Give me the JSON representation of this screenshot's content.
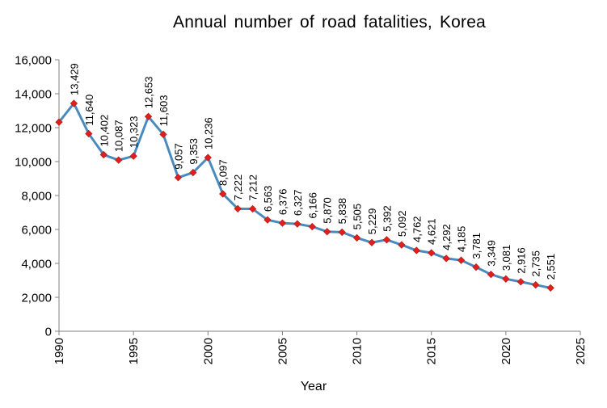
{
  "chart_data": {
    "type": "line",
    "title": "Annual  number  of road fatalities, Korea",
    "xlabel": "Year",
    "ylabel": "",
    "xlim": [
      1990,
      2025
    ],
    "ylim": [
      0,
      16000
    ],
    "x_ticks": [
      1990,
      1995,
      2000,
      2005,
      2010,
      2015,
      2020,
      2025
    ],
    "y_ticks": [
      0,
      2000,
      4000,
      6000,
      8000,
      10000,
      12000,
      14000,
      16000
    ],
    "x_tick_labels": [
      "1990",
      "1995",
      "2000",
      "2005",
      "2010",
      "2015",
      "2020",
      "2025"
    ],
    "y_tick_labels": [
      "0",
      "2,000",
      "4,000",
      "6,000",
      "8,000",
      "10,000",
      "12,000",
      "14,000",
      "16,000"
    ],
    "grid": false,
    "legend": "none",
    "series": [
      {
        "name": "Road fatalities",
        "line_color": "#4a8bbf",
        "marker_color": "#e0201c",
        "marker": "diamond",
        "x": [
          1990,
          1991,
          1992,
          1993,
          1994,
          1995,
          1996,
          1997,
          1998,
          1999,
          2000,
          2001,
          2002,
          2003,
          2004,
          2005,
          2006,
          2007,
          2008,
          2009,
          2010,
          2011,
          2012,
          2013,
          2014,
          2015,
          2016,
          2017,
          2018,
          2019,
          2020,
          2021,
          2022,
          2023
        ],
        "values": [
          12325,
          13429,
          11640,
          10402,
          10087,
          10323,
          12653,
          11603,
          9057,
          9353,
          10236,
          8097,
          7222,
          7212,
          6563,
          6376,
          6327,
          6166,
          5870,
          5838,
          5505,
          5229,
          5392,
          5092,
          4762,
          4621,
          4292,
          4185,
          3781,
          3349,
          3081,
          2916,
          2735,
          2551
        ],
        "data_labels": [
          "",
          "13,429",
          "11,640",
          "10,402",
          "10,087",
          "10,323",
          "12,653",
          "11,603",
          "9,057",
          "9,353",
          "10,236",
          "8,097",
          "7,222",
          "7,212",
          "6,563",
          "6,376",
          "6,327",
          "6,166",
          "5,870",
          "5,838",
          "5,505",
          "5,229",
          "5,392",
          "5,092",
          "4,762",
          "4,621",
          "4,292",
          "4,185",
          "3,781",
          "3,349",
          "3,081",
          "2,916",
          "2,735",
          "2,551"
        ]
      }
    ]
  }
}
